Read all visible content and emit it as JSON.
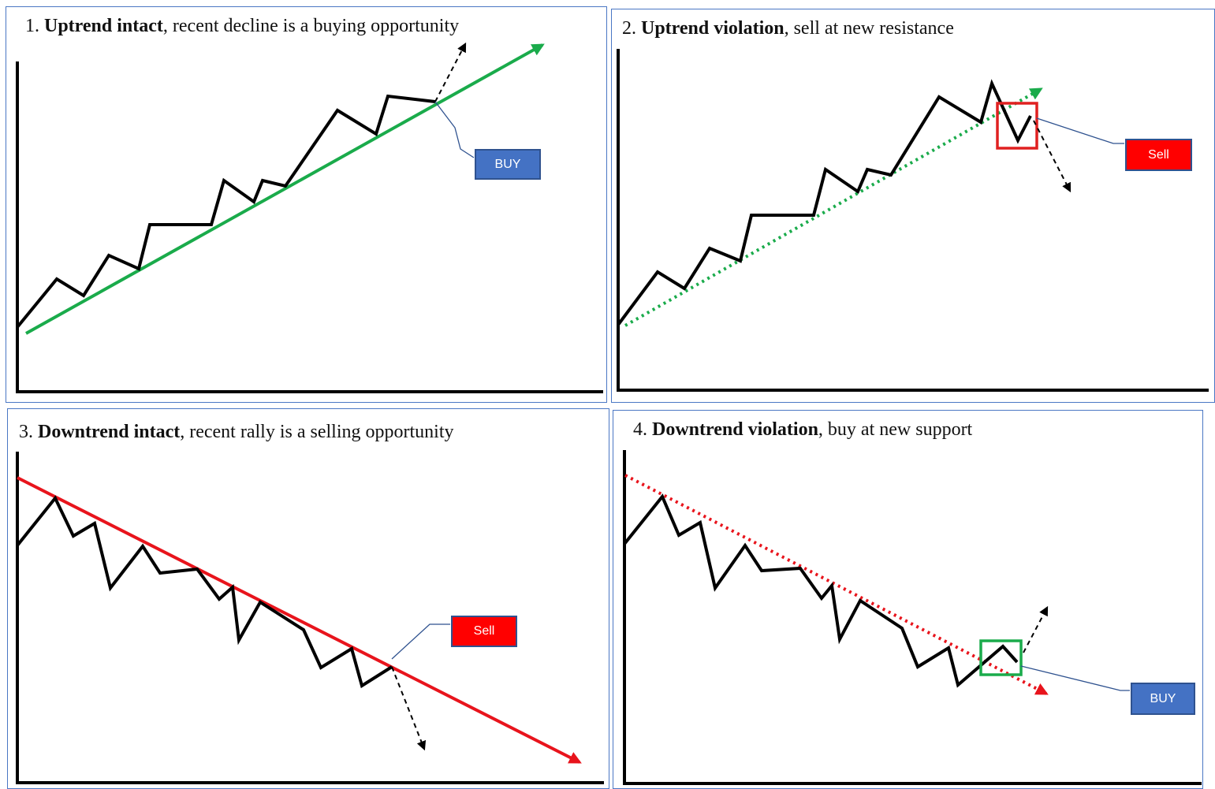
{
  "panels": [
    {
      "number": "1.",
      "bold": "Uptrend intact",
      "rest": ", recent decline is a buying opportunity",
      "button": "BUY",
      "button_color": "#4472c4",
      "trendline_color": "#1aab4b",
      "trendline_style": "solid"
    },
    {
      "number": "2.",
      "bold": "Uptrend violation",
      "rest": ", sell at new resistance",
      "button": "Sell",
      "button_color": "#ff0000",
      "trendline_color": "#1aab4b",
      "trendline_style": "dotted",
      "highlight_box_color": "#e02020"
    },
    {
      "number": "3.",
      "bold": "Downtrend intact",
      "rest": ", recent rally is a selling opportunity",
      "button": "Sell",
      "button_color": "#ff0000",
      "trendline_color": "#e8141c",
      "trendline_style": "solid"
    },
    {
      "number": "4.",
      "bold": "Downtrend violation",
      "rest": ", buy at new support",
      "button": "BUY",
      "button_color": "#4472c4",
      "trendline_color": "#e8141c",
      "trendline_style": "dotted",
      "highlight_box_color": "#1aab4b"
    }
  ],
  "colors": {
    "frame_border": "#4a77c4",
    "price_line": "#000000",
    "callout_line": "#2f528f"
  }
}
